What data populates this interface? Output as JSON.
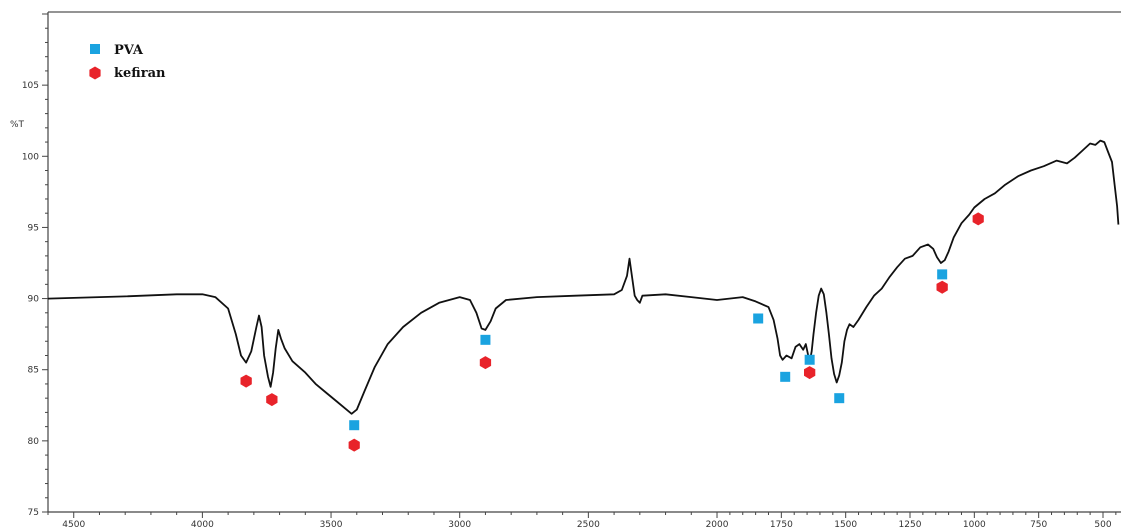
{
  "chart_data": {
    "type": "line",
    "title": "",
    "xlabel": "",
    "ylabel": "%T",
    "xlim": [
      4600,
      430
    ],
    "ylim": [
      75,
      110
    ],
    "x_reversed": true,
    "grid": false,
    "legend_position": "top-left",
    "x_ticks": [
      "4500",
      "4000",
      "3500",
      "3000",
      "2500",
      "2000",
      "1750",
      "1500",
      "1250",
      "1000",
      "750",
      "500"
    ],
    "y_ticks": [
      "75",
      "80",
      "85",
      "90",
      "95",
      "100",
      "105"
    ],
    "series": [
      {
        "name": "",
        "color": "#111111",
        "points": [
          [
            4600,
            90.0
          ],
          [
            4500,
            90.05
          ],
          [
            4300,
            90.15
          ],
          [
            4100,
            90.3
          ],
          [
            4000,
            90.3
          ],
          [
            3950,
            90.1
          ],
          [
            3900,
            89.3
          ],
          [
            3870,
            87.5
          ],
          [
            3850,
            86.0
          ],
          [
            3830,
            85.5
          ],
          [
            3810,
            86.3
          ],
          [
            3790,
            88.0
          ],
          [
            3780,
            88.8
          ],
          [
            3770,
            88.0
          ],
          [
            3760,
            86.0
          ],
          [
            3745,
            84.5
          ],
          [
            3735,
            83.8
          ],
          [
            3725,
            84.8
          ],
          [
            3715,
            86.5
          ],
          [
            3705,
            87.8
          ],
          [
            3695,
            87.2
          ],
          [
            3680,
            86.5
          ],
          [
            3650,
            85.6
          ],
          [
            3600,
            84.8
          ],
          [
            3560,
            84.0
          ],
          [
            3520,
            83.4
          ],
          [
            3480,
            82.8
          ],
          [
            3440,
            82.2
          ],
          [
            3420,
            81.9
          ],
          [
            3400,
            82.2
          ],
          [
            3370,
            83.5
          ],
          [
            3330,
            85.2
          ],
          [
            3280,
            86.8
          ],
          [
            3220,
            88.0
          ],
          [
            3150,
            89.0
          ],
          [
            3080,
            89.7
          ],
          [
            3000,
            90.1
          ],
          [
            2960,
            89.9
          ],
          [
            2935,
            89.0
          ],
          [
            2915,
            87.9
          ],
          [
            2900,
            87.8
          ],
          [
            2880,
            88.4
          ],
          [
            2860,
            89.3
          ],
          [
            2820,
            89.9
          ],
          [
            2700,
            90.1
          ],
          [
            2550,
            90.2
          ],
          [
            2400,
            90.3
          ],
          [
            2370,
            90.6
          ],
          [
            2350,
            91.6
          ],
          [
            2340,
            92.8
          ],
          [
            2330,
            91.5
          ],
          [
            2320,
            90.2
          ],
          [
            2310,
            89.9
          ],
          [
            2300,
            89.7
          ],
          [
            2290,
            90.2
          ],
          [
            2200,
            90.3
          ],
          [
            2100,
            90.1
          ],
          [
            2000,
            89.9
          ],
          [
            1900,
            90.1
          ],
          [
            1850,
            89.8
          ],
          [
            1800,
            89.4
          ],
          [
            1780,
            88.5
          ],
          [
            1765,
            87.2
          ],
          [
            1755,
            86.0
          ],
          [
            1745,
            85.7
          ],
          [
            1730,
            86.0
          ],
          [
            1710,
            85.8
          ],
          [
            1695,
            86.6
          ],
          [
            1680,
            86.8
          ],
          [
            1665,
            86.4
          ],
          [
            1655,
            86.8
          ],
          [
            1648,
            86.2
          ],
          [
            1640,
            85.5
          ],
          [
            1632,
            86.3
          ],
          [
            1625,
            87.5
          ],
          [
            1615,
            89.0
          ],
          [
            1605,
            90.2
          ],
          [
            1595,
            90.7
          ],
          [
            1585,
            90.3
          ],
          [
            1575,
            89.0
          ],
          [
            1565,
            87.5
          ],
          [
            1555,
            85.8
          ],
          [
            1545,
            84.7
          ],
          [
            1535,
            84.1
          ],
          [
            1525,
            84.6
          ],
          [
            1515,
            85.5
          ],
          [
            1505,
            87.0
          ],
          [
            1495,
            87.8
          ],
          [
            1485,
            88.2
          ],
          [
            1470,
            88.0
          ],
          [
            1450,
            88.5
          ],
          [
            1420,
            89.4
          ],
          [
            1390,
            90.2
          ],
          [
            1360,
            90.7
          ],
          [
            1330,
            91.5
          ],
          [
            1300,
            92.2
          ],
          [
            1270,
            92.8
          ],
          [
            1240,
            93.0
          ],
          [
            1210,
            93.6
          ],
          [
            1180,
            93.8
          ],
          [
            1160,
            93.5
          ],
          [
            1145,
            92.9
          ],
          [
            1130,
            92.5
          ],
          [
            1115,
            92.7
          ],
          [
            1100,
            93.3
          ],
          [
            1080,
            94.3
          ],
          [
            1050,
            95.3
          ],
          [
            1020,
            95.9
          ],
          [
            1000,
            96.4
          ],
          [
            960,
            97.0
          ],
          [
            920,
            97.4
          ],
          [
            880,
            98.0
          ],
          [
            830,
            98.6
          ],
          [
            780,
            99.0
          ],
          [
            730,
            99.3
          ],
          [
            680,
            99.7
          ],
          [
            640,
            99.5
          ],
          [
            610,
            99.9
          ],
          [
            580,
            100.4
          ],
          [
            550,
            100.9
          ],
          [
            530,
            100.8
          ],
          [
            510,
            101.1
          ],
          [
            495,
            101.0
          ],
          [
            480,
            100.3
          ],
          [
            465,
            99.6
          ],
          [
            455,
            98.0
          ],
          [
            445,
            96.5
          ],
          [
            440,
            95.2
          ]
        ]
      }
    ],
    "markers": [
      {
        "name": "PVA",
        "shape": "square",
        "color": "#1aa3e0",
        "points": [
          [
            3410,
            81.1
          ],
          [
            2900,
            87.1
          ],
          [
            1840,
            88.6
          ],
          [
            1735,
            84.5
          ],
          [
            1640,
            85.7
          ],
          [
            1525,
            83.0
          ],
          [
            1125,
            91.7
          ]
        ]
      },
      {
        "name": "kefiran",
        "shape": "hexagon",
        "color": "#e8232a",
        "points": [
          [
            3830,
            84.2
          ],
          [
            3730,
            82.9
          ],
          [
            3410,
            79.7
          ],
          [
            2900,
            85.5
          ],
          [
            1640,
            84.8
          ],
          [
            1125,
            90.8
          ],
          [
            985,
            95.6
          ]
        ]
      }
    ],
    "legend": [
      {
        "label": "PVA",
        "shape": "square",
        "color": "#1aa3e0"
      },
      {
        "label": "kefiran",
        "shape": "hexagon",
        "color": "#e8232a"
      }
    ]
  }
}
